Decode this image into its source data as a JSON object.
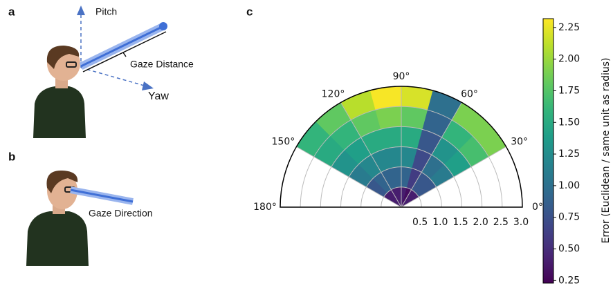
{
  "panels": {
    "a": {
      "label": "a",
      "annotations": [
        "Pitch",
        "Gaze Distance",
        "Yaw"
      ]
    },
    "b": {
      "label": "b",
      "annotations": [
        "Gaze Direction"
      ]
    },
    "c": {
      "label": "c"
    }
  },
  "chart_data": {
    "type": "polar-heatmap",
    "theta_bins": [
      30,
      45,
      60,
      75,
      90,
      105,
      120,
      135,
      150
    ],
    "r_bins": [
      0,
      0.5,
      1,
      1.5,
      2,
      2.5,
      3
    ],
    "values": [
      [
        0.4,
        0.8,
        1.1,
        1.4,
        1.7,
        1.9
      ],
      [
        0.4,
        0.8,
        1.0,
        1.3,
        1.6,
        1.9
      ],
      [
        0.3,
        0.6,
        0.7,
        0.8,
        0.9,
        1.0
      ],
      [
        0.4,
        0.9,
        1.2,
        1.5,
        1.8,
        2.2
      ],
      [
        0.4,
        0.9,
        1.2,
        1.5,
        1.9,
        2.3
      ],
      [
        0.4,
        0.9,
        1.2,
        1.5,
        1.8,
        2.1
      ],
      [
        0.4,
        0.9,
        1.2,
        1.4,
        1.6,
        1.8
      ],
      [
        0.4,
        0.8,
        1.1,
        1.3,
        1.5,
        1.6
      ]
    ],
    "rlim": [
      0,
      3
    ],
    "rticks": [
      0.5,
      {
        "value": 1,
        "label": "1.0"
      },
      1.5,
      {
        "value": 2,
        "label": "2.0"
      },
      2.5,
      {
        "value": 3,
        "label": "3.0"
      }
    ],
    "thetalim": [
      0,
      180
    ],
    "thetaticks": [
      {
        "value": 0,
        "label": "0°"
      },
      {
        "value": 30,
        "label": "30°"
      },
      {
        "value": 60,
        "label": "60°"
      },
      {
        "value": 90,
        "label": "90°"
      },
      {
        "value": 120,
        "label": "120°"
      },
      {
        "value": 150,
        "label": "150°"
      },
      {
        "value": 180,
        "label": "180°"
      }
    ],
    "colormap": "viridis",
    "clim": [
      0.23,
      2.32
    ],
    "colorbar_label": "Error (Euclidean / same unit as radius)",
    "cticks": [
      0.25,
      {
        "value": 0.5,
        "label": "0.50"
      },
      0.75,
      {
        "value": 1,
        "label": "1.00"
      },
      1.25,
      {
        "value": 1.5,
        "label": "1.50"
      },
      1.75,
      {
        "value": 2,
        "label": "2.00"
      },
      2.25
    ],
    "grid": true
  }
}
